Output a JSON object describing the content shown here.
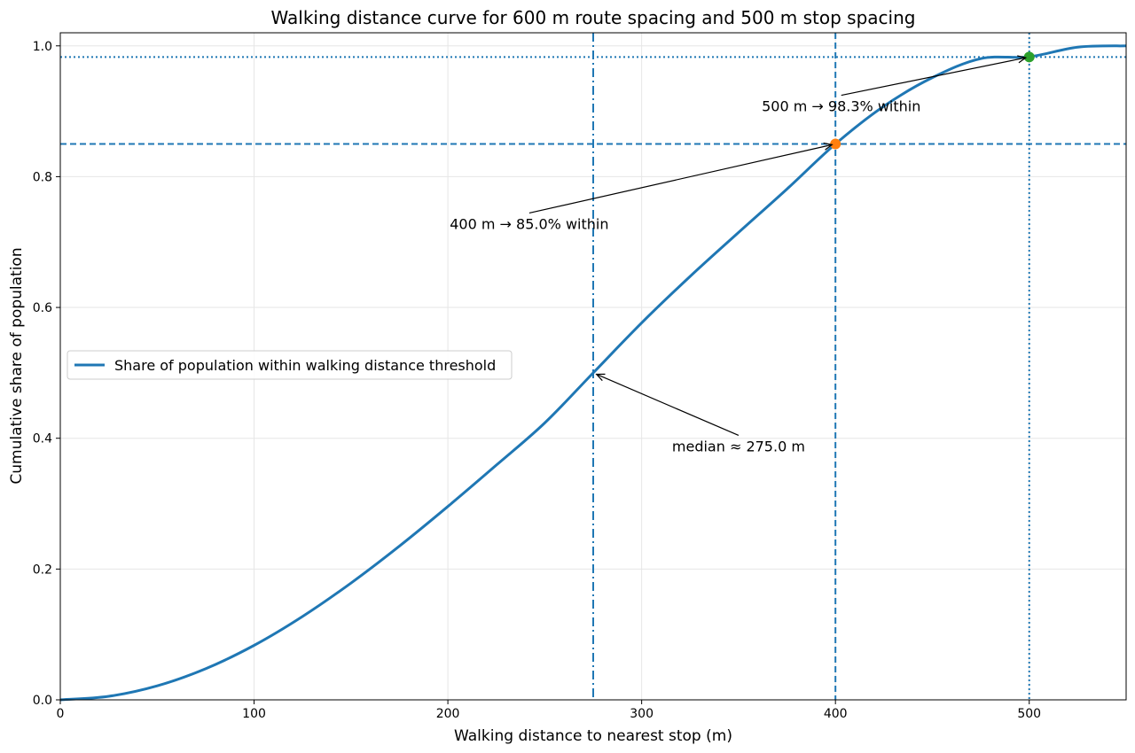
{
  "chart_data": {
    "type": "line",
    "title": "Walking distance curve for 600 m route spacing and 500 m stop spacing",
    "xlabel": "Walking distance to nearest stop (m)",
    "ylabel": "Cumulative share of population",
    "xlim": [
      0,
      550
    ],
    "ylim": [
      0,
      1.02
    ],
    "xticks": [
      0,
      100,
      200,
      300,
      400,
      500
    ],
    "xtick_labels": [
      "0",
      "100",
      "200",
      "300",
      "400",
      "500"
    ],
    "yticks": [
      0.0,
      0.2,
      0.4,
      0.6,
      0.8,
      1.0
    ],
    "ytick_labels": [
      "0.0",
      "0.2",
      "0.4",
      "0.6",
      "0.8",
      "1.0"
    ],
    "grid": true,
    "legend_placement": "center-left",
    "series": [
      {
        "name": "Share of population within walking distance threshold",
        "color": "#1f77b4",
        "x": [
          0,
          25,
          50,
          75,
          100,
          125,
          150,
          175,
          200,
          225,
          250,
          275,
          300,
          325,
          350,
          375,
          400,
          425,
          450,
          475,
          500,
          525,
          550
        ],
        "y": [
          0.0,
          0.0054,
          0.0214,
          0.0476,
          0.0833,
          0.1275,
          0.1786,
          0.2351,
          0.2957,
          0.3589,
          0.4235,
          0.5,
          0.5765,
          0.6475,
          0.7147,
          0.7811,
          0.85,
          0.9078,
          0.9514,
          0.9805,
          0.9833,
          0.998,
          1.0
        ]
      }
    ],
    "reference_lines": [
      {
        "orientation": "vertical",
        "value": 275,
        "style": "dashdot",
        "color": "#1f77b4"
      },
      {
        "orientation": "vertical",
        "value": 400,
        "style": "dashed",
        "color": "#1f77b4"
      },
      {
        "orientation": "vertical",
        "value": 500,
        "style": "dotted",
        "color": "#1f77b4"
      },
      {
        "orientation": "horizontal",
        "value": 0.85,
        "style": "dashed",
        "color": "#1f77b4"
      },
      {
        "orientation": "horizontal",
        "value": 0.983,
        "style": "dotted",
        "color": "#1f77b4"
      }
    ],
    "markers": [
      {
        "x": 400,
        "y": 0.85,
        "color": "#ff7f0e"
      },
      {
        "x": 500,
        "y": 0.983,
        "color": "#2ca02c"
      }
    ],
    "annotations": [
      {
        "text": "400 m → 85.0% within",
        "x": 400,
        "y": 0.85,
        "text_x": 242,
        "text_y": 0.72
      },
      {
        "text": "500 m → 98.3% within",
        "x": 500,
        "y": 0.983,
        "text_x": 403,
        "text_y": 0.9
      },
      {
        "text": "median ≈ 275.0 m",
        "x": 275,
        "y": 0.5,
        "text_x": 350,
        "text_y": 0.38
      }
    ]
  }
}
